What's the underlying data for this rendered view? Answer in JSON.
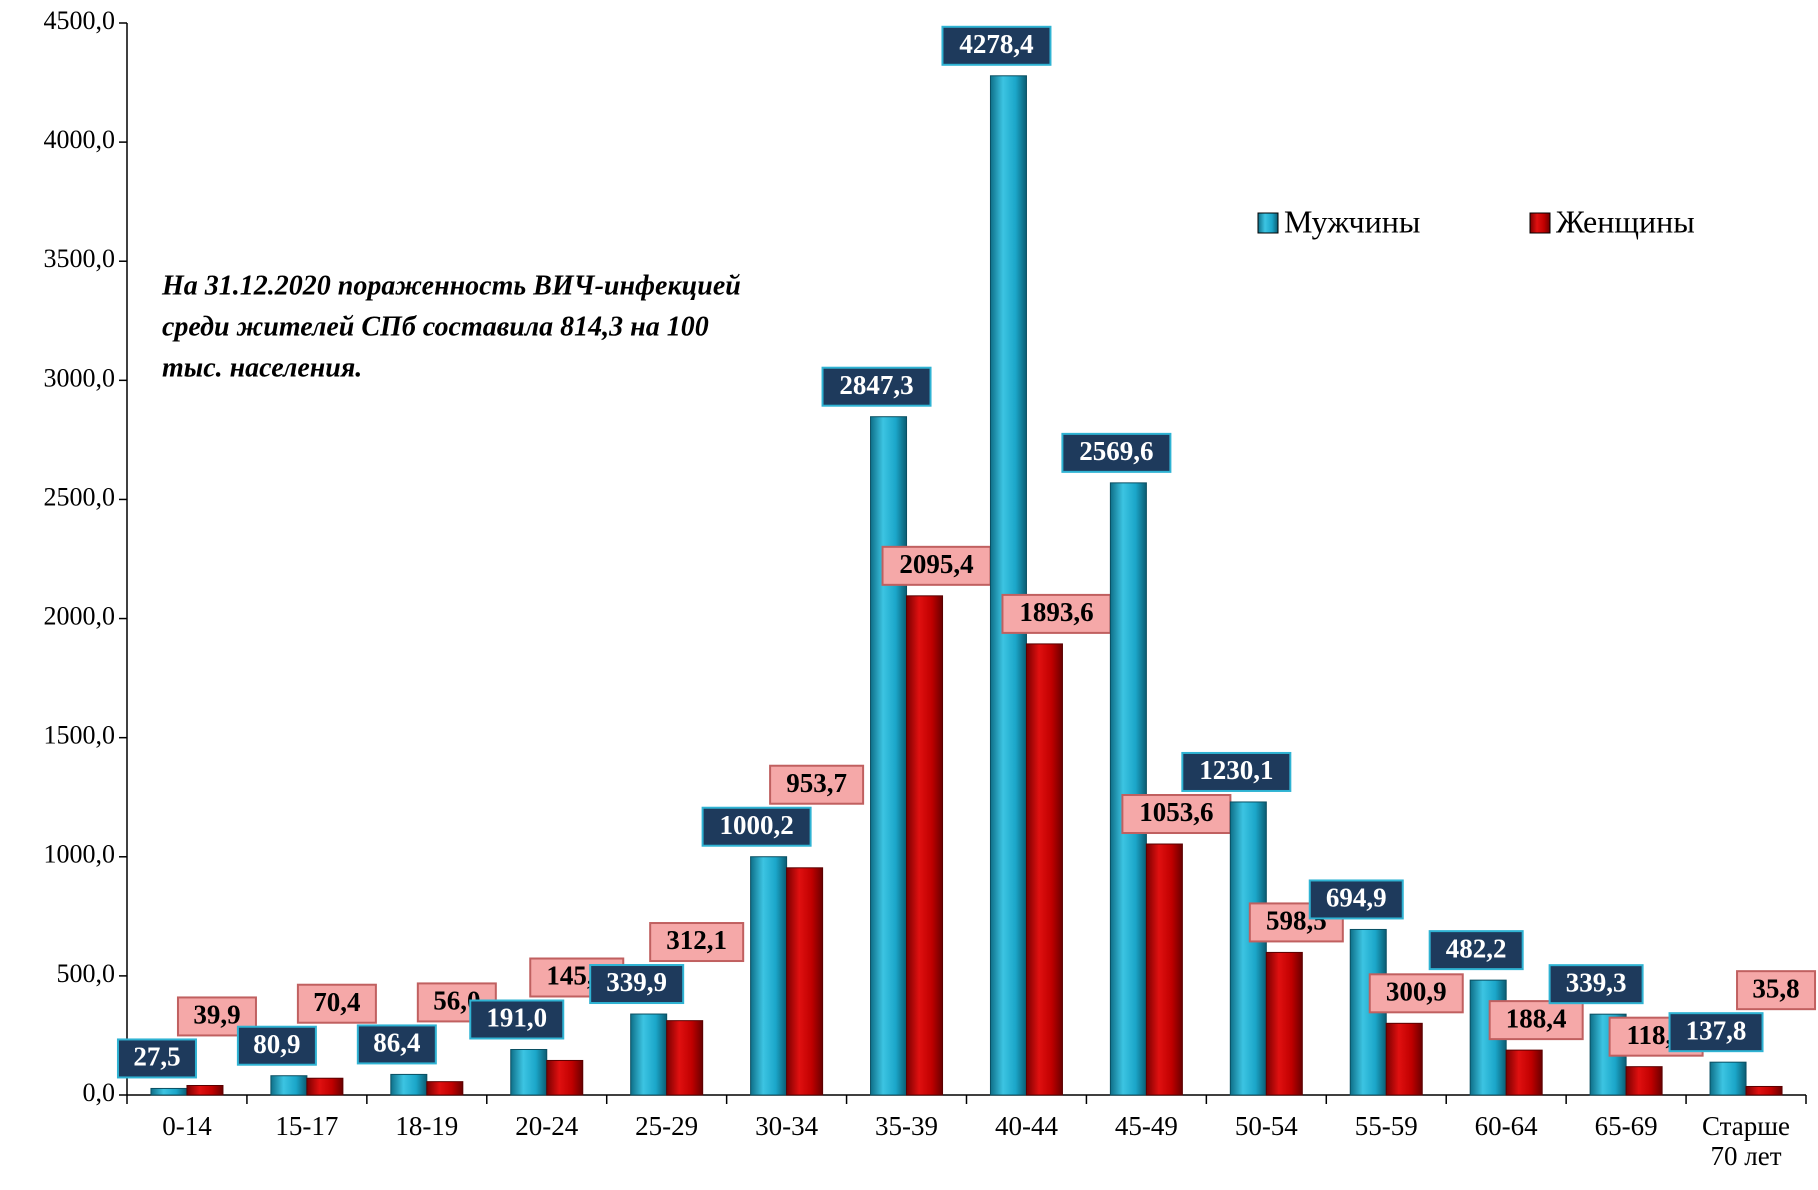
{
  "chart_data": {
    "type": "bar",
    "annotation": [
      "На 31.12.2020 пораженность ВИЧ-инфекцией",
      "среди жителей СПб составила 814,3  на 100",
      "тыс. населения."
    ],
    "categories": [
      "0-14",
      "15-17",
      "18-19",
      "20-24",
      "25-29",
      "30-34",
      "35-39",
      "40-44",
      "45-49",
      "50-54",
      "55-59",
      "60-64",
      "65-69",
      "Старше 70 лет"
    ],
    "series": [
      {
        "name": "Мужчины",
        "color": "#1ba6c9",
        "values": [
          27.5,
          80.9,
          86.4,
          191.0,
          339.9,
          1000.2,
          2847.3,
          4278.4,
          2569.6,
          1230.1,
          694.9,
          482.2,
          339.3,
          137.8
        ],
        "value_labels": [
          "27,5",
          "80,9",
          "86,4",
          "191,0",
          "339,9",
          "1000,2",
          "2847,3",
          "4278,4",
          "2569,6",
          "1230,1",
          "694,9",
          "482,2",
          "339,3",
          "137,8"
        ]
      },
      {
        "name": "Женщины",
        "color": "#c00000",
        "values": [
          39.9,
          70.4,
          56.0,
          145.0,
          312.1,
          953.7,
          2095.4,
          1893.6,
          1053.6,
          598.5,
          300.9,
          188.4,
          118.9,
          35.8
        ],
        "value_labels": [
          "39,9",
          "70,4",
          "56,0",
          "145,0",
          "312,1",
          "953,7",
          "2095,4",
          "1893,6",
          "1053,6",
          "598,5",
          "300,9",
          "188,4",
          "118,9",
          "35,8"
        ]
      }
    ],
    "ylim": [
      0,
      4500
    ],
    "yticks": [
      {
        "value": 0,
        "label": "0,0"
      },
      {
        "value": 500,
        "label": "500,0"
      },
      {
        "value": 1000,
        "label": "1000,0"
      },
      {
        "value": 1500,
        "label": "1500,0"
      },
      {
        "value": 2000,
        "label": "2000,0"
      },
      {
        "value": 2500,
        "label": "2500,0"
      },
      {
        "value": 3000,
        "label": "3000,0"
      },
      {
        "value": 3500,
        "label": "3500,0"
      },
      {
        "value": 4000,
        "label": "4000,0"
      },
      {
        "value": 4500,
        "label": "4500,0"
      }
    ],
    "grid": false
  }
}
